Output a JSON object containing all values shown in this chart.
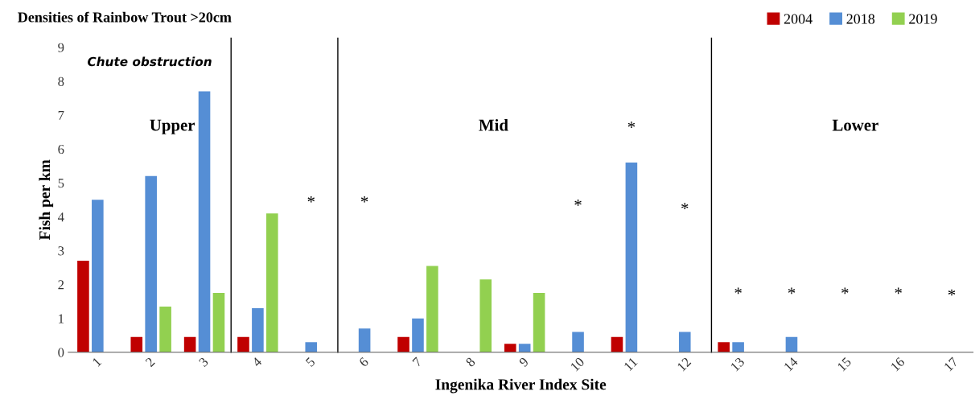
{
  "chart_data": {
    "type": "bar",
    "title": "Densities of Rainbow Trout >20cm",
    "xlabel": "Ingenika River Index Site",
    "ylabel": "Fish per km",
    "x": [
      1,
      2,
      3,
      4,
      5,
      6,
      7,
      8,
      9,
      10,
      11,
      12,
      13,
      14,
      15,
      16,
      17
    ],
    "xlim": [
      0.45,
      17.4
    ],
    "xticks": [
      1,
      2,
      3,
      4,
      5,
      6,
      7,
      8,
      9,
      10,
      11,
      12,
      13,
      14,
      15,
      16,
      17
    ],
    "ylim": [
      0,
      9
    ],
    "yticks": [
      0,
      1,
      2,
      3,
      4,
      5,
      6,
      7,
      8,
      9
    ],
    "series": [
      {
        "name": "2004",
        "color": "#c00000",
        "values": [
          2.7,
          0.45,
          0.45,
          0.45,
          0,
          0,
          0.45,
          0,
          0.25,
          0,
          0.45,
          0,
          0.3,
          0,
          0,
          0,
          0
        ]
      },
      {
        "name": "2018",
        "color": "#558ed5",
        "values": [
          4.5,
          5.2,
          7.7,
          1.3,
          0.3,
          0.7,
          1.0,
          0,
          0.25,
          0.6,
          5.6,
          0.6,
          0.3,
          0.45,
          0,
          0,
          0
        ]
      },
      {
        "name": "2019",
        "color": "#92d050",
        "values": [
          0,
          1.35,
          1.75,
          4.1,
          0,
          0,
          2.55,
          2.15,
          1.75,
          0,
          0,
          0,
          0,
          0,
          0,
          0,
          0
        ]
      }
    ],
    "ref_lines": [
      {
        "axis": "x",
        "value": 3.5,
        "color": "#000000"
      },
      {
        "axis": "x",
        "value": 5.5,
        "color": "#000000"
      },
      {
        "axis": "x",
        "value": 12.5,
        "color": "#000000"
      }
    ],
    "annotations": [
      "Chute obstruction",
      "Upper",
      "Mid",
      "Lower",
      "*",
      "*",
      "*",
      "*",
      "*",
      "*",
      "*",
      "*",
      "*",
      "*"
    ],
    "legend": "top right",
    "grid": false
  }
}
